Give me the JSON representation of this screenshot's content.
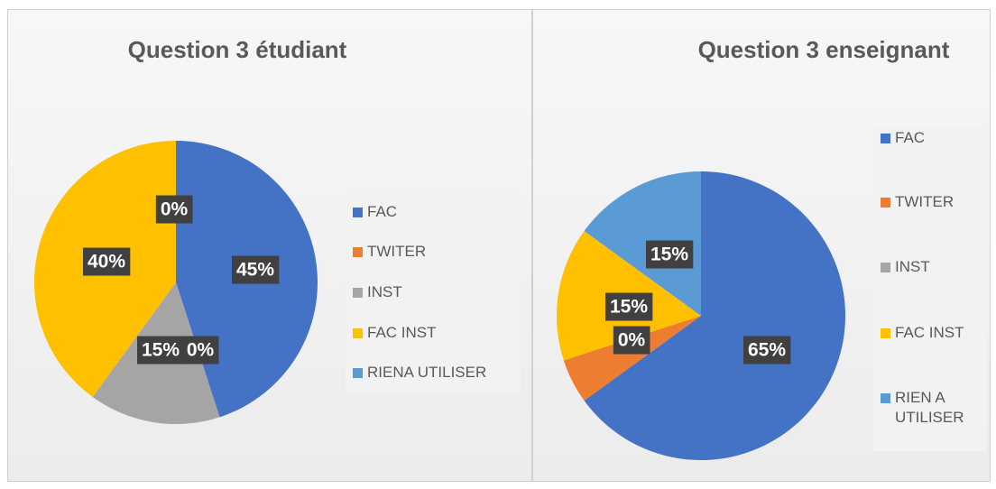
{
  "chart_data": [
    {
      "type": "pie",
      "title": "Question 3 étudiant",
      "categories": [
        "FAC",
        "TWITER",
        "INST",
        "FAC INST",
        "RIENA UTILISER"
      ],
      "values": [
        45,
        0,
        15,
        40,
        0
      ],
      "value_labels": [
        "45%",
        "0%",
        "15%",
        "40%",
        "0%"
      ],
      "colors": [
        "#4472c4",
        "#ed7d31",
        "#a5a5a5",
        "#ffc000",
        "#5b9bd5"
      ]
    },
    {
      "type": "pie",
      "title": "Question 3 enseignant",
      "categories": [
        "FAC",
        "TWITER",
        "INST",
        "FAC INST",
        "RIEN A UTILISER"
      ],
      "values": [
        65,
        5,
        0,
        15,
        15
      ],
      "value_labels": [
        "65%",
        null,
        "0%",
        "15%",
        "15%"
      ],
      "colors": [
        "#4472c4",
        "#ed7d31",
        "#a5a5a5",
        "#ffc000",
        "#5b9bd5"
      ]
    }
  ]
}
